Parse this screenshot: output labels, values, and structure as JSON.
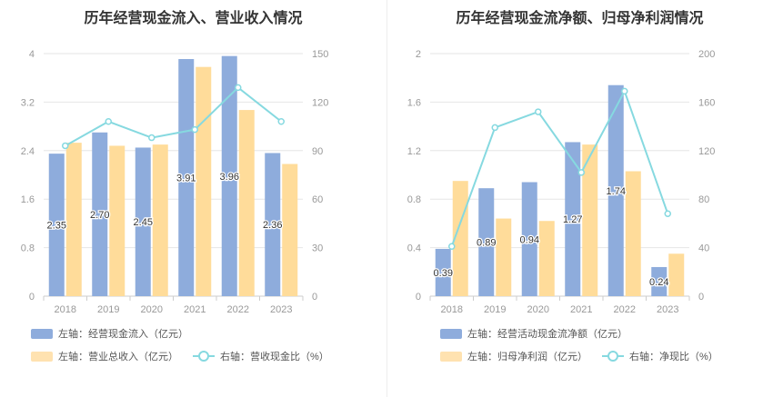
{
  "colors": {
    "bar1": "#8eacdc",
    "bar2": "#ffdc9a",
    "line": "#86d9e0",
    "axis": "#999999",
    "grid": "#e6e6e6"
  },
  "left_chart": {
    "title": "历年经营现金流入、营业收入情况",
    "legend": {
      "bar1": "左轴：经营现金流入（亿元）",
      "bar2": "左轴：营业总收入（亿元）",
      "line": "右轴：营收现金比（%）"
    }
  },
  "right_chart": {
    "title": "历年经营现金流净额、归母净利润情况",
    "legend": {
      "bar1": "左轴：经营活动现金流净额（亿元）",
      "bar2": "左轴：归母净利润（亿元）",
      "line": "右轴：净现比（%）"
    }
  },
  "chart_data": [
    {
      "type": "bar",
      "title": "历年经营现金流入、营业收入情况",
      "categories": [
        "2018",
        "2019",
        "2020",
        "2021",
        "2022",
        "2023"
      ],
      "series": [
        {
          "name": "左轴：经营现金流入（亿元）",
          "values": [
            2.35,
            2.7,
            2.45,
            3.91,
            3.96,
            2.36
          ],
          "labels": [
            "2.35",
            "2.70",
            "2.45",
            "3.91",
            "3.96",
            "2.36"
          ],
          "axis": "left"
        },
        {
          "name": "左轴：营业总收入（亿元）",
          "values": [
            2.53,
            2.48,
            2.5,
            3.78,
            3.07,
            2.18
          ],
          "axis": "left"
        },
        {
          "name": "右轴：营收现金比（%）",
          "type": "line",
          "values": [
            93,
            108,
            98,
            103,
            129,
            108
          ],
          "axis": "right"
        }
      ],
      "left_axis": {
        "min": 0,
        "max": 4,
        "ticks": [
          "0",
          "0.8",
          "1.6",
          "2.4",
          "3.2",
          "4"
        ]
      },
      "right_axis": {
        "min": 0,
        "max": 150,
        "ticks": [
          "0",
          "30",
          "60",
          "90",
          "120",
          "150"
        ]
      },
      "grid": true,
      "legend_position": "bottom"
    },
    {
      "type": "bar",
      "title": "历年经营现金流净额、归母净利润情况",
      "categories": [
        "2018",
        "2019",
        "2020",
        "2021",
        "2022",
        "2023"
      ],
      "series": [
        {
          "name": "左轴：经营活动现金流净额（亿元）",
          "values": [
            0.39,
            0.89,
            0.94,
            1.27,
            1.74,
            0.24
          ],
          "labels": [
            "0.39",
            "0.89",
            "0.94",
            "1.27",
            "1.74",
            "0.24"
          ],
          "axis": "left"
        },
        {
          "name": "左轴：归母净利润（亿元）",
          "values": [
            0.95,
            0.64,
            0.62,
            1.25,
            1.03,
            0.35
          ],
          "axis": "left"
        },
        {
          "name": "右轴：净现比（%）",
          "type": "line",
          "values": [
            41,
            139,
            152,
            102,
            169,
            68
          ],
          "axis": "right"
        }
      ],
      "left_axis": {
        "min": 0,
        "max": 2,
        "ticks": [
          "0",
          "0.4",
          "0.8",
          "1.2",
          "1.6",
          "2"
        ]
      },
      "right_axis": {
        "min": 0,
        "max": 200,
        "ticks": [
          "0",
          "40",
          "80",
          "120",
          "160",
          "200"
        ]
      },
      "grid": true,
      "legend_position": "bottom"
    }
  ]
}
